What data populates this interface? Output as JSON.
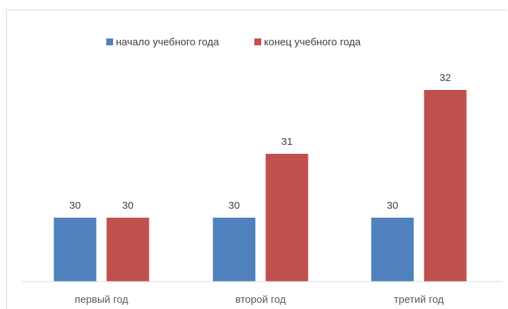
{
  "chart_data": {
    "type": "bar",
    "title": "",
    "xlabel": "",
    "ylabel": "",
    "categories": [
      "первый год",
      "второй год",
      "третий год"
    ],
    "series": [
      {
        "name": "начало учебного года",
        "values": [
          30,
          30,
          30
        ],
        "color": "#4f81bd"
      },
      {
        "name": "конец учебного года",
        "values": [
          30,
          31,
          32
        ],
        "color": "#c0504d"
      }
    ],
    "ylim": [
      29,
      32.3
    ],
    "grid": false,
    "data_labels": true,
    "legend": "top"
  }
}
